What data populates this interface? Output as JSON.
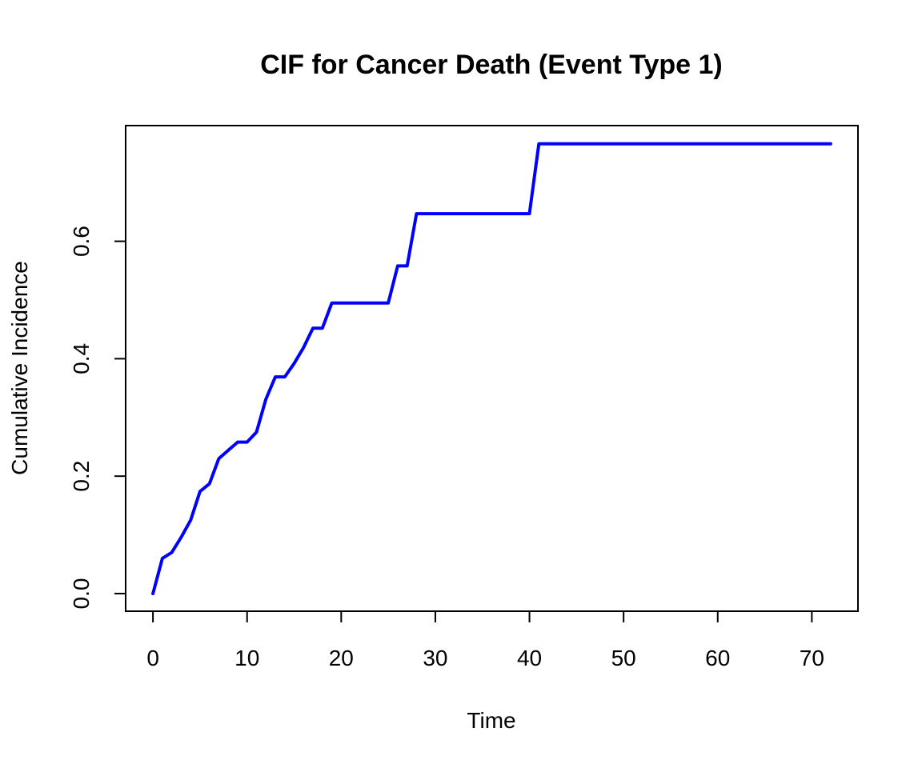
{
  "chart_data": {
    "type": "line",
    "title": "CIF for Cancer Death (Event Type 1)",
    "xlabel": "Time",
    "ylabel": "Cumulative Incidence",
    "xlim": [
      -2.9,
      74.9
    ],
    "ylim": [
      -0.03,
      0.797
    ],
    "x_ticks": [
      0,
      10,
      20,
      30,
      40,
      50,
      60,
      70
    ],
    "x_tick_labels": [
      "0",
      "10",
      "20",
      "30",
      "40",
      "50",
      "60",
      "70"
    ],
    "y_ticks": [
      0.0,
      0.2,
      0.4,
      0.6
    ],
    "y_tick_labels": [
      "0.0",
      "0.2",
      "0.4",
      "0.6"
    ],
    "grid": false,
    "colors": {
      "line": "#0000ff",
      "axis": "#000000",
      "background": "#ffffff"
    },
    "series": [
      {
        "x": [
          0,
          1,
          2,
          3,
          4,
          5,
          6,
          7,
          8,
          9,
          10,
          11,
          12,
          13,
          14,
          15,
          16,
          17,
          18,
          19,
          25,
          26,
          27,
          28,
          40,
          41,
          72
        ],
        "y": [
          0.0,
          0.06,
          0.07,
          0.096,
          0.125,
          0.174,
          0.187,
          0.23,
          0.244,
          0.258,
          0.258,
          0.275,
          0.331,
          0.369,
          0.369,
          0.392,
          0.419,
          0.452,
          0.452,
          0.495,
          0.495,
          0.558,
          0.558,
          0.647,
          0.647,
          0.766,
          0.766
        ]
      }
    ]
  }
}
